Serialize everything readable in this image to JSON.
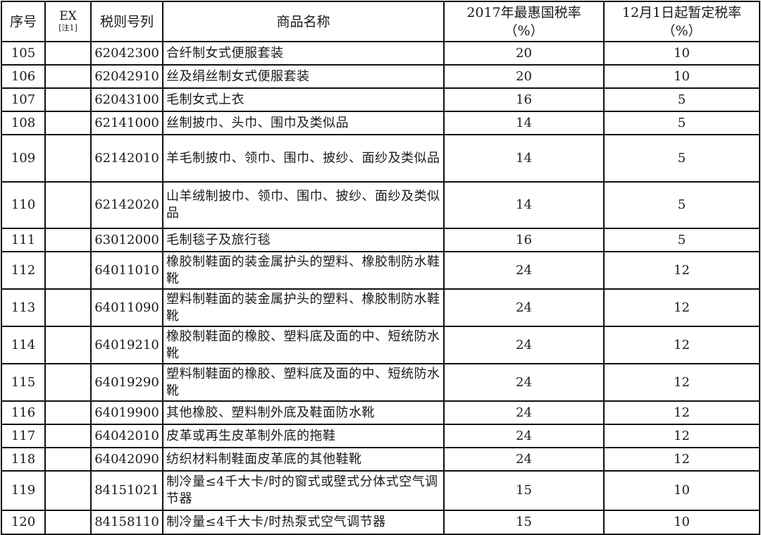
{
  "header": {
    "seq": "序号",
    "ex": "EX",
    "ex_note": "[注1]",
    "code": "税则号列",
    "name": "商品名称",
    "mfn_rate": "2017年最惠国税率",
    "mfn_unit": "（%）",
    "temp_rate": "12月1日起暂定税率",
    "temp_unit": "（%）"
  },
  "rows": [
    {
      "seq": "105",
      "ex": "",
      "code": "62042300",
      "name": "合纤制女式便服套装",
      "mfn": "20",
      "temp": "10"
    },
    {
      "seq": "106",
      "ex": "",
      "code": "62042910",
      "name": "丝及绢丝制女式便服套装",
      "mfn": "20",
      "temp": "10"
    },
    {
      "seq": "107",
      "ex": "",
      "code": "62043100",
      "name": "毛制女式上衣",
      "mfn": "16",
      "temp": "5"
    },
    {
      "seq": "108",
      "ex": "",
      "code": "62141000",
      "name": "丝制披巾、头巾、围巾及类似品",
      "mfn": "14",
      "temp": "5"
    },
    {
      "seq": "109",
      "ex": "",
      "code": "62142010",
      "name": "羊毛制披巾、领巾、围巾、披纱、面纱及类似品",
      "mfn": "14",
      "temp": "5"
    },
    {
      "seq": "110",
      "ex": "",
      "code": "62142020",
      "name": "山羊绒制披巾、领巾、围巾、披纱、面纱及类似品",
      "mfn": "14",
      "temp": "5"
    },
    {
      "seq": "111",
      "ex": "",
      "code": "63012000",
      "name": "毛制毯子及旅行毯",
      "mfn": "16",
      "temp": "5"
    },
    {
      "seq": "112",
      "ex": "",
      "code": "64011010",
      "name": "橡胶制鞋面的装金属护头的塑料、橡胶制防水鞋靴",
      "mfn": "24",
      "temp": "12"
    },
    {
      "seq": "113",
      "ex": "",
      "code": "64011090",
      "name": "塑料制鞋面的装金属护头的塑料、橡胶制防水鞋靴",
      "mfn": "24",
      "temp": "12"
    },
    {
      "seq": "114",
      "ex": "",
      "code": "64019210",
      "name": "橡胶制鞋面的橡胶、塑料底及面的中、短统防水靴",
      "mfn": "24",
      "temp": "12"
    },
    {
      "seq": "115",
      "ex": "",
      "code": "64019290",
      "name": "塑料制鞋面的橡胶、塑料底及面的中、短统防水靴",
      "mfn": "24",
      "temp": "12"
    },
    {
      "seq": "116",
      "ex": "",
      "code": "64019900",
      "name": "其他橡胶、塑料制外底及鞋面防水靴",
      "mfn": "24",
      "temp": "12"
    },
    {
      "seq": "117",
      "ex": "",
      "code": "64042010",
      "name": "皮革或再生皮革制外底的拖鞋",
      "mfn": "24",
      "temp": "12"
    },
    {
      "seq": "118",
      "ex": "",
      "code": "64042090",
      "name": "纺织材料制鞋面皮革底的其他鞋靴",
      "mfn": "24",
      "temp": "12"
    },
    {
      "seq": "119",
      "ex": "",
      "code": "84151021",
      "name": "制冷量≤4千大卡/时的窗式或壁式分体式空气调节器",
      "mfn": "15",
      "temp": "10"
    },
    {
      "seq": "120",
      "ex": "",
      "code": "84158110",
      "name": "制冷量≤4千大卡/时热泵式空气调节器",
      "mfn": "15",
      "temp": "10"
    }
  ]
}
